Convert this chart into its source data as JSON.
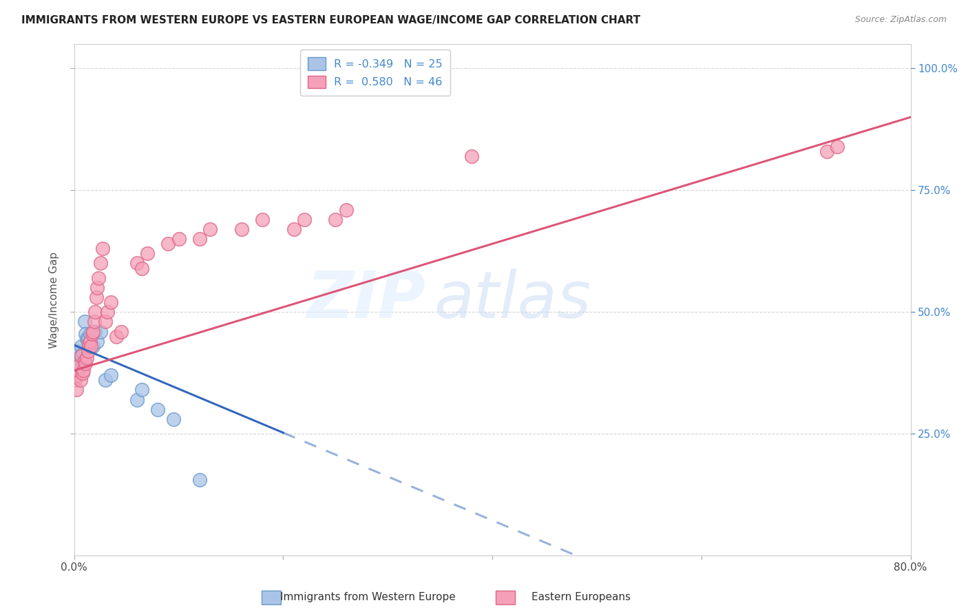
{
  "title": "IMMIGRANTS FROM WESTERN EUROPE VS EASTERN EUROPEAN WAGE/INCOME GAP CORRELATION CHART",
  "source": "Source: ZipAtlas.com",
  "ylabel": "Wage/Income Gap",
  "right_yticks": [
    "25.0%",
    "50.0%",
    "75.0%",
    "100.0%"
  ],
  "right_ytick_vals": [
    0.25,
    0.5,
    0.75,
    1.0
  ],
  "xlim": [
    0.0,
    0.8
  ],
  "ylim": [
    0.0,
    1.05
  ],
  "series1_color": "#aac4e8",
  "series1_edge": "#6699cc",
  "series2_color": "#f5a0b8",
  "series2_edge": "#dd6688",
  "line1_color": "#3366bb",
  "line2_color": "#dd5577",
  "background": "#ffffff",
  "grid_color": "#cccccc",
  "legend_label_color": "#4488cc",
  "watermark_zip_color": "#ddeeff",
  "watermark_atlas_color": "#cce0ff",
  "west_x": [
    0.001,
    0.002,
    0.003,
    0.004,
    0.005,
    0.006,
    0.007,
    0.008,
    0.009,
    0.01,
    0.011,
    0.012,
    0.013,
    0.015,
    0.018,
    0.02,
    0.022,
    0.025,
    0.03,
    0.035,
    0.06,
    0.065,
    0.08,
    0.095,
    0.12
  ],
  "west_y": [
    0.4,
    0.38,
    0.395,
    0.38,
    0.42,
    0.41,
    0.43,
    0.395,
    0.415,
    0.48,
    0.455,
    0.445,
    0.445,
    0.455,
    0.43,
    0.46,
    0.44,
    0.46,
    0.36,
    0.37,
    0.32,
    0.34,
    0.3,
    0.28,
    0.155
  ],
  "east_x": [
    0.001,
    0.002,
    0.003,
    0.004,
    0.005,
    0.006,
    0.007,
    0.008,
    0.009,
    0.01,
    0.011,
    0.012,
    0.013,
    0.014,
    0.015,
    0.016,
    0.017,
    0.018,
    0.019,
    0.02,
    0.021,
    0.022,
    0.023,
    0.025,
    0.027,
    0.03,
    0.032,
    0.035,
    0.04,
    0.045,
    0.06,
    0.065,
    0.07,
    0.09,
    0.1,
    0.12,
    0.13,
    0.16,
    0.18,
    0.21,
    0.22,
    0.25,
    0.26,
    0.38,
    0.72,
    0.73
  ],
  "east_y": [
    0.36,
    0.34,
    0.37,
    0.38,
    0.39,
    0.36,
    0.41,
    0.375,
    0.38,
    0.4,
    0.395,
    0.405,
    0.42,
    0.435,
    0.44,
    0.43,
    0.455,
    0.46,
    0.48,
    0.5,
    0.53,
    0.55,
    0.57,
    0.6,
    0.63,
    0.48,
    0.5,
    0.52,
    0.45,
    0.46,
    0.6,
    0.59,
    0.62,
    0.64,
    0.65,
    0.65,
    0.67,
    0.67,
    0.69,
    0.67,
    0.69,
    0.69,
    0.71,
    0.82,
    0.83,
    0.84
  ]
}
